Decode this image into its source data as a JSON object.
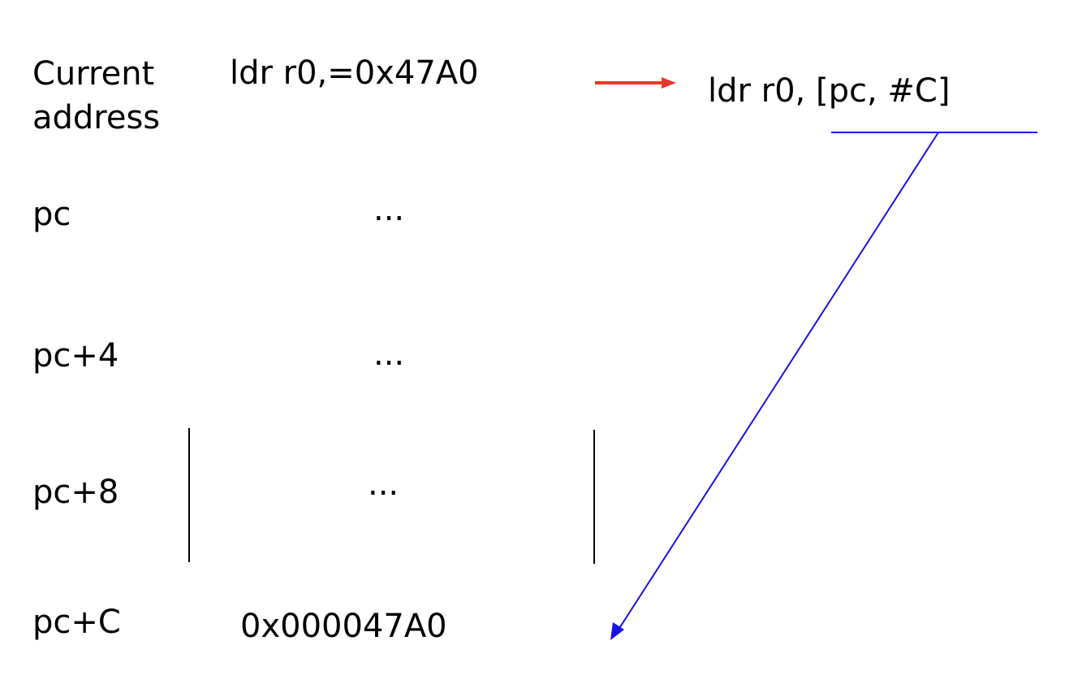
{
  "rows": [
    {
      "address": "Current\naddress",
      "content": "ldr r0,=0x47A0"
    },
    {
      "address": "pc",
      "content": "..."
    },
    {
      "address": "pc+4",
      "content": "..."
    },
    {
      "address": "pc+8",
      "content": "..."
    },
    {
      "address": "pc+C",
      "content": "0x000047A0"
    }
  ],
  "translated_instruction": "ldr r0, [pc, #C]",
  "colors": {
    "translate_arrow": "#e8382a",
    "offset_arrow": "#1a12e6",
    "text": "#000000"
  }
}
